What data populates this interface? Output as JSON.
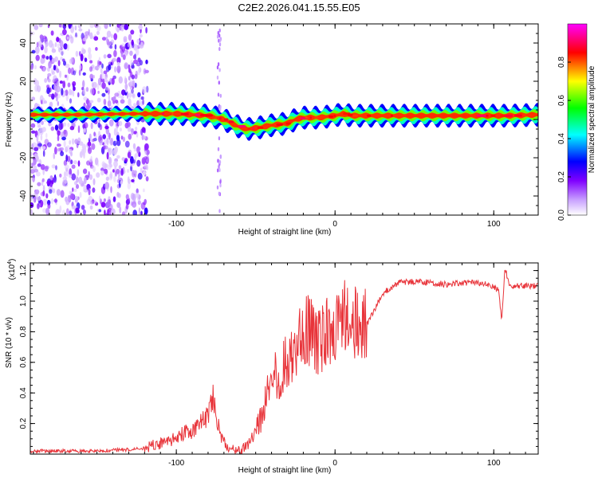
{
  "title": "C2E2.2026.041.15.55.E05",
  "chart_data": [
    {
      "type": "heatmap",
      "name": "spectrogram",
      "xlabel": "Height of straight line (km)",
      "ylabel": "Frequency (Hz)",
      "xlim": [
        -192,
        128
      ],
      "ylim": [
        -50,
        50
      ],
      "xticks": [
        -100,
        0,
        100
      ],
      "xtick_labels": [
        "-100",
        "0",
        "100"
      ],
      "yticks": [
        -40,
        -20,
        0,
        20,
        40
      ],
      "ytick_labels": [
        "-40",
        "-20",
        "0",
        "20",
        "40"
      ],
      "ridge": {
        "x": [
          -192,
          -160,
          -130,
          -120,
          -100,
          -90,
          -80,
          -70,
          -60,
          -55,
          -50,
          -40,
          -30,
          -25,
          -20,
          -10,
          0,
          5,
          10,
          30,
          60,
          90,
          110,
          128
        ],
        "frequency": [
          2.5,
          2.5,
          3,
          3,
          3,
          2.5,
          2,
          0,
          -4,
          -5,
          -4.5,
          -3,
          -2,
          0,
          1,
          1,
          2,
          3,
          2,
          2,
          2,
          2,
          2,
          2.5
        ]
      },
      "colorbar": {
        "label": "Normalized spectral amplitude",
        "range": [
          0,
          1
        ],
        "ticks": [
          0.0,
          0.2,
          0.4,
          0.6,
          0.8
        ],
        "tick_labels": [
          "0.0",
          "0.2",
          "0.4",
          "0.6",
          "0.8"
        ],
        "colors": [
          "#ffffff",
          "#8000ff",
          "#0000ff",
          "#00ffff",
          "#00ff00",
          "#ffff00",
          "#ff0000",
          "#ff00ff"
        ]
      }
    },
    {
      "type": "line",
      "name": "snr",
      "xlabel": "Height of straight line (km)",
      "ylabel": "SNR (10 * v/v)",
      "scale_label": "(x10",
      "scale_exponent": "4",
      "xlim": [
        -192,
        128
      ],
      "ylim": [
        0,
        1.25
      ],
      "xticks": [
        -100,
        0,
        100
      ],
      "xtick_labels": [
        "-100",
        "0",
        "100"
      ],
      "yticks": [
        0.2,
        0.4,
        0.6,
        0.8,
        1.0,
        1.2
      ],
      "ytick_labels": [
        "0.2",
        "0.4",
        "0.6",
        "0.8",
        "1.0",
        "1.2"
      ],
      "color": "#e8343a",
      "series": [
        {
          "name": "SNR",
          "x": [
            -192,
            -170,
            -150,
            -130,
            -120,
            -110,
            -100,
            -95,
            -90,
            -85,
            -80,
            -77,
            -75,
            -72,
            -70,
            -65,
            -60,
            -55,
            -50,
            -45,
            -40,
            -35,
            -30,
            -25,
            -20,
            -15,
            -10,
            -5,
            0,
            5,
            10,
            15,
            20,
            25,
            30,
            40,
            50,
            60,
            70,
            80,
            90,
            100,
            103,
            105,
            107,
            110,
            120,
            128
          ],
          "y": [
            0.02,
            0.02,
            0.02,
            0.03,
            0.04,
            0.07,
            0.1,
            0.14,
            0.15,
            0.2,
            0.25,
            0.38,
            0.25,
            0.12,
            0.08,
            0.03,
            0.02,
            0.06,
            0.14,
            0.3,
            0.45,
            0.55,
            0.6,
            0.7,
            0.78,
            0.8,
            0.75,
            0.8,
            0.85,
            0.9,
            0.92,
            0.8,
            0.85,
            0.95,
            1.05,
            1.12,
            1.13,
            1.12,
            1.11,
            1.12,
            1.12,
            1.1,
            1.07,
            0.88,
            1.22,
            1.1,
            1.1,
            1.1
          ]
        }
      ]
    }
  ]
}
